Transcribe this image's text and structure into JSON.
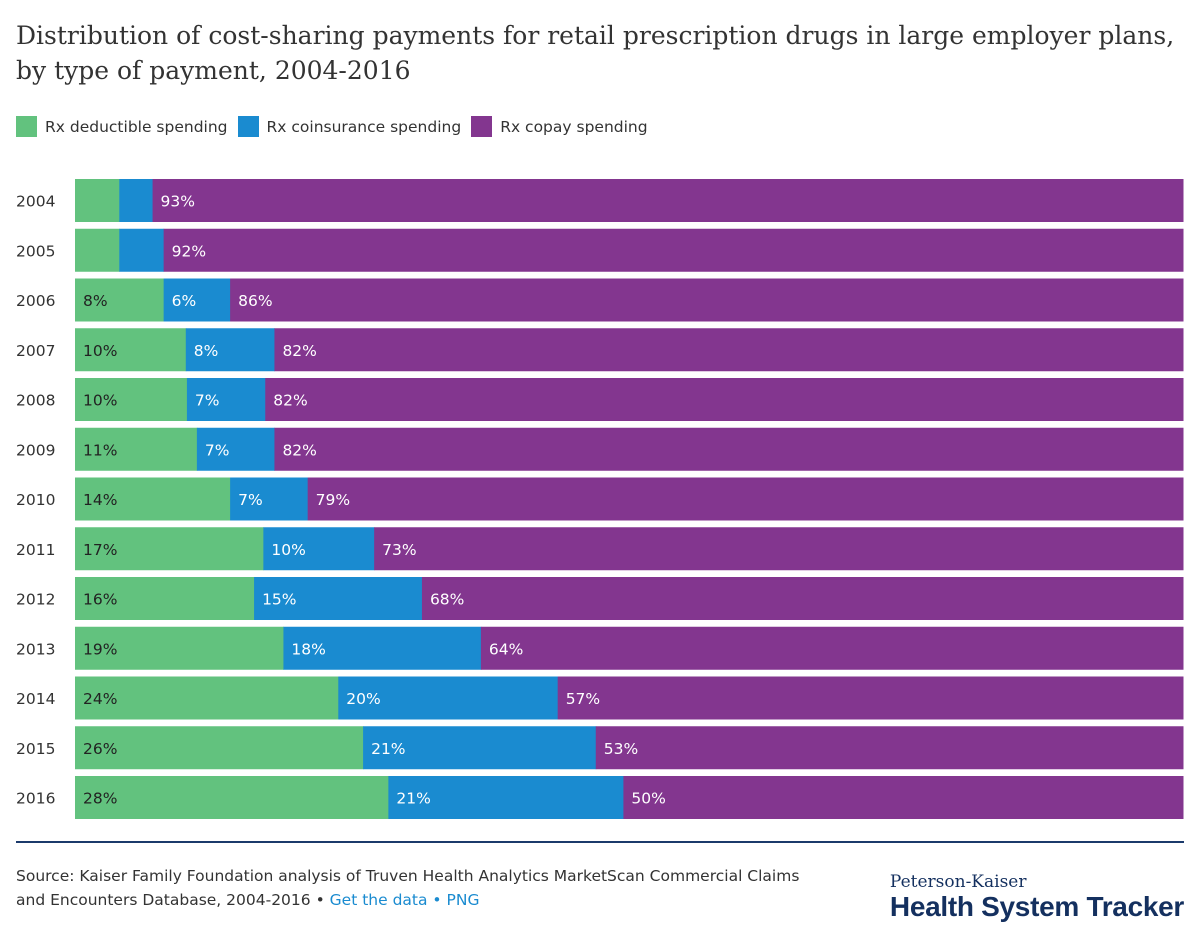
{
  "chart_data": {
    "type": "bar",
    "orientation": "horizontal",
    "stacked": true,
    "normalized_percent": true,
    "title": "Distribution of cost-sharing payments for retail prescription drugs in large employer plans, by type of payment, 2004-2016",
    "legend_position": "top-left",
    "grid": false,
    "categories": [
      "2004",
      "2005",
      "2006",
      "2007",
      "2008",
      "2009",
      "2010",
      "2011",
      "2012",
      "2013",
      "2014",
      "2015",
      "2016"
    ],
    "series": [
      {
        "name": "Rx deductible spending",
        "color": "#62c27e",
        "values": [
          4,
          4,
          8,
          10,
          10,
          11,
          14,
          17,
          16,
          19,
          24,
          26,
          28
        ],
        "labels": [
          null,
          null,
          "8%",
          "10%",
          "10%",
          "11%",
          "14%",
          "17%",
          "16%",
          "19%",
          "24%",
          "26%",
          "28%"
        ]
      },
      {
        "name": "Rx coinsurance spending",
        "color": "#1a8bd0",
        "values": [
          3,
          4,
          6,
          8,
          7,
          7,
          7,
          10,
          15,
          18,
          20,
          21,
          21
        ],
        "labels": [
          null,
          null,
          "6%",
          "8%",
          "7%",
          "7%",
          "7%",
          "10%",
          "15%",
          "18%",
          "20%",
          "21%",
          "21%"
        ]
      },
      {
        "name": "Rx copay spending",
        "color": "#83368f",
        "values": [
          93,
          92,
          86,
          82,
          82,
          82,
          79,
          73,
          68,
          64,
          57,
          53,
          50
        ],
        "labels": [
          "93%",
          "92%",
          "86%",
          "82%",
          "82%",
          "82%",
          "79%",
          "73%",
          "68%",
          "64%",
          "57%",
          "53%",
          "50%"
        ]
      }
    ]
  },
  "footer": {
    "source": "Source: Kaiser Family Foundation analysis of Truven Health Analytics MarketScan Commercial Claims and Encounters Database, 2004-2016",
    "separator": " • ",
    "get_data": "Get the data",
    "png": "PNG",
    "brand_top": "Peterson-Kaiser",
    "brand_main": "Health System Tracker"
  }
}
